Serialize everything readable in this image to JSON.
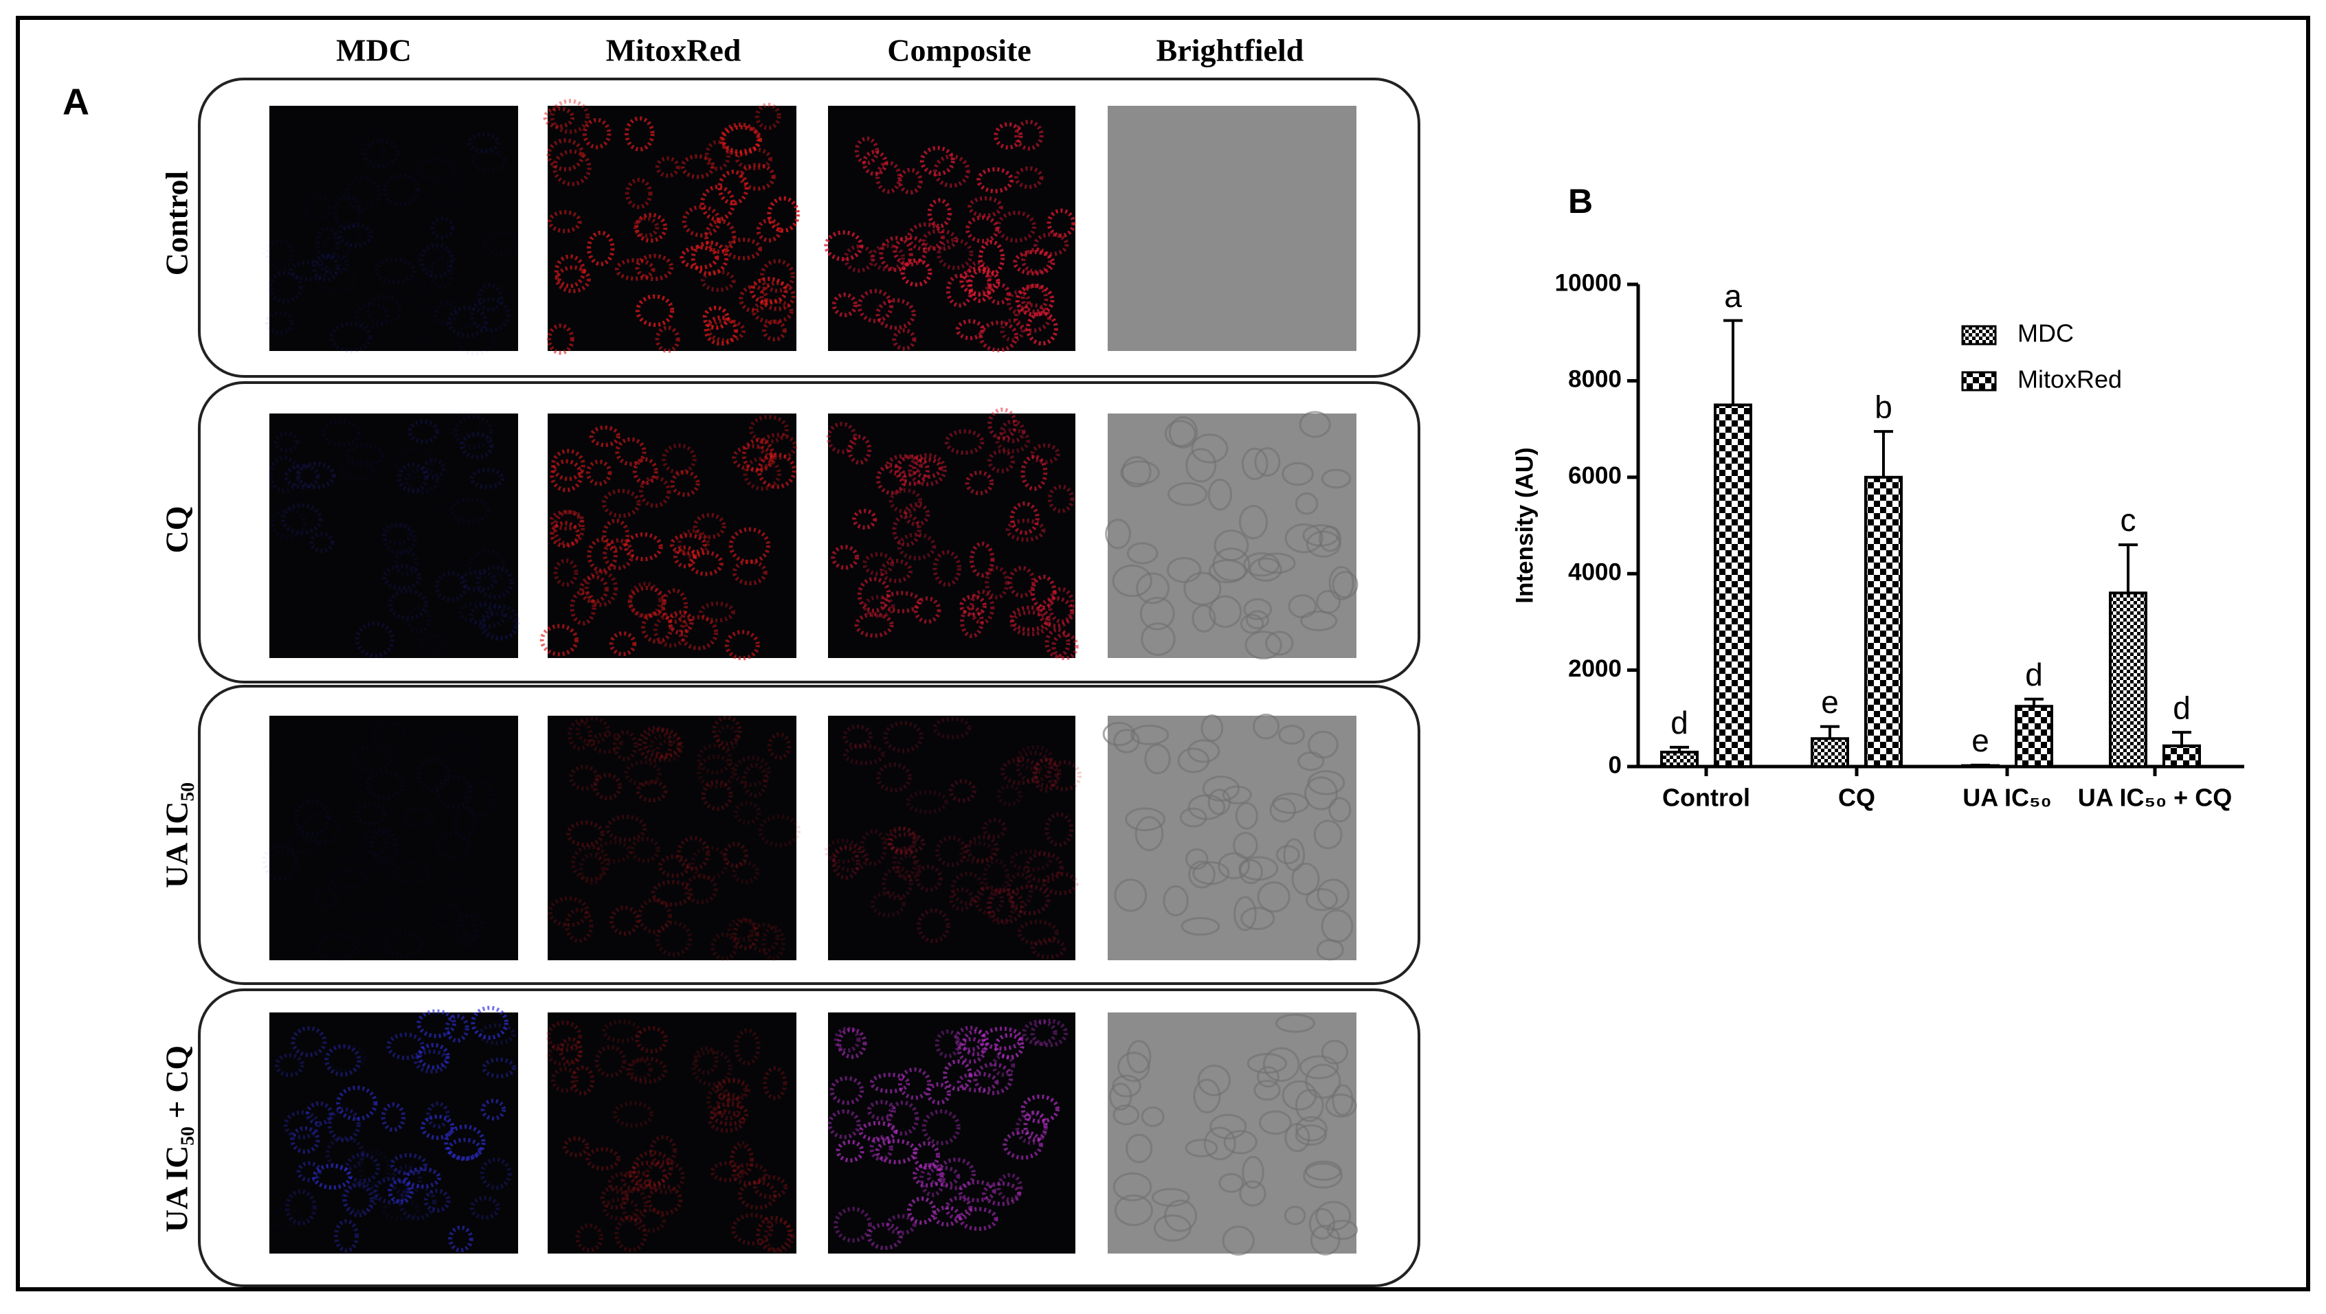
{
  "panel_a": {
    "label": "A",
    "columns": [
      "MDC",
      "MitoxRed",
      "Composite",
      "Brightfield"
    ],
    "rows": [
      "Control",
      "CQ",
      "UA IC₅₀",
      "UA IC₅₀ + CQ"
    ]
  },
  "chart_data": {
    "type": "bar",
    "title": "B",
    "y_label": "Intensity (AU)",
    "categories": [
      "Control",
      "CQ",
      "UA IC₅₀",
      "UA IC₅₀ + CQ"
    ],
    "series": [
      {
        "name": "MDC",
        "color": "#000000",
        "values": [
          300,
          580,
          20,
          3600
        ],
        "errors": [
          100,
          250,
          10,
          1000
        ],
        "annotations": [
          "d",
          "e",
          "e",
          "c"
        ]
      },
      {
        "name": "MitoxRed",
        "color": "#000000",
        "values": [
          7500,
          6000,
          1250,
          430
        ],
        "errors": [
          1750,
          950,
          150,
          280
        ],
        "annotations": [
          "a",
          "b",
          "d",
          "d"
        ]
      }
    ],
    "ylim": [
      0,
      10000
    ],
    "yticks": [
      0,
      2000,
      4000,
      6000,
      8000,
      10000
    ],
    "legend": "upper right",
    "grid": false
  }
}
